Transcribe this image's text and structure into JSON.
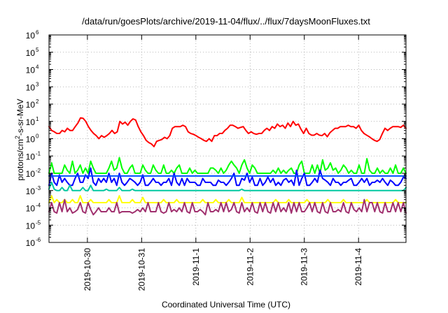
{
  "chart_data": {
    "type": "line",
    "title": "/data/run/goesPlots/archive/2019-11-04/flux/../flux/7daysMoonFluxes.txt",
    "xlabel": "Coordinated Universal Time (UTC)",
    "ylabel": "protons/cm2-s-sr-MeV",
    "yscale": "log",
    "ylim": [
      1e-06,
      1000000.0
    ],
    "xlim": [
      "2019-10-29T07:00",
      "2019-11-04T21:00"
    ],
    "grid": true,
    "x_ticks": [
      "2019-10-30",
      "2019-10-31",
      "2019-11-1",
      "2019-11-2",
      "2019-11-3",
      "2019-11-4"
    ],
    "y_ticks": [
      {
        "base": "10",
        "exp": "-6"
      },
      {
        "base": "10",
        "exp": "-5"
      },
      {
        "base": "10",
        "exp": "-4"
      },
      {
        "base": "10",
        "exp": "-3"
      },
      {
        "base": "10",
        "exp": "-2"
      },
      {
        "base": "10",
        "exp": "-1"
      },
      {
        "base": "10",
        "exp": "0"
      },
      {
        "base": "10",
        "exp": "1"
      },
      {
        "base": "10",
        "exp": "2"
      },
      {
        "base": "10",
        "exp": "3"
      },
      {
        "base": "10",
        "exp": "4"
      },
      {
        "base": "10",
        "exp": "5"
      },
      {
        "base": "10",
        "exp": "6"
      }
    ],
    "series": [
      {
        "color": "#ff0000",
        "values": [
          5,
          3,
          2.5,
          2,
          2,
          3,
          2.5,
          4,
          3,
          3,
          5,
          8,
          16,
          15,
          10,
          5,
          3,
          2,
          1.5,
          1,
          1.5,
          1.2,
          1.5,
          2,
          3,
          2,
          2.5,
          10,
          7,
          9,
          6,
          10,
          14,
          12,
          5,
          2.5,
          1.5,
          0.8,
          0.6,
          0.5,
          0.35,
          0.7,
          0.8,
          0.9,
          1.2,
          1,
          1.5,
          4,
          5,
          5,
          5,
          6,
          5,
          2.5,
          2,
          1.8,
          1.5,
          1.2,
          1,
          0.8,
          0.7,
          1,
          0.7,
          1.5,
          1.5,
          2,
          2,
          3,
          4,
          6,
          6,
          5,
          4,
          4.5,
          5,
          3,
          2,
          2.5,
          2,
          1.8,
          2,
          2,
          3,
          4,
          3,
          5,
          4,
          7,
          5,
          6,
          4,
          8,
          5,
          10,
          6,
          7,
          3.5,
          2,
          4,
          2,
          1.6,
          1.6,
          2,
          1.6,
          1.5,
          2,
          1.3,
          2.2,
          3,
          4,
          4,
          5,
          5,
          5,
          6,
          5,
          5,
          4,
          6,
          3,
          2,
          1.6,
          1.3,
          1,
          0.8,
          0.7,
          0.9,
          2,
          4,
          3,
          4,
          5,
          5,
          5,
          4.5,
          6,
          4
        ]
      },
      {
        "color": "#00ff00",
        "values": [
          0.01,
          0.04,
          0.01,
          0.01,
          0.01,
          0.01,
          0.03,
          0.015,
          0.01,
          0.05,
          0.01,
          0.015,
          0.03,
          0.01,
          0.02,
          0.01,
          0.05,
          0.02,
          0.01,
          0.01,
          0.01,
          0.01,
          0.01,
          0.02,
          0.05,
          0.015,
          0.02,
          0.08,
          0.02,
          0.01,
          0.01,
          0.02,
          0.03,
          0.01,
          0.01,
          0.01,
          0.03,
          0.015,
          0.01,
          0.01,
          0.03,
          0.015,
          0.01,
          0.01,
          0.03,
          0.01,
          0.01,
          0.015,
          0.01,
          0.02,
          0.03,
          0.01,
          0.01,
          0.01,
          0.02,
          0.01,
          0.015,
          0.01,
          0.01,
          0.01,
          0.01,
          0.01,
          0.02,
          0.02,
          0.015,
          0.01,
          0.02,
          0.01,
          0.015,
          0.03,
          0.05,
          0.03,
          0.02,
          0.01,
          0.03,
          0.06,
          0.02,
          0.01,
          0.03,
          0.02,
          0.01,
          0.01,
          0.01,
          0.01,
          0.01,
          0.01,
          0.015,
          0.01,
          0.02,
          0.01,
          0.015,
          0.01,
          0.015,
          0.02,
          0.01,
          0.01,
          0.03,
          0.05,
          0.01,
          0.01,
          0.01,
          0.03,
          0.01,
          0.03,
          0.01,
          0.06,
          0.015,
          0.02,
          0.04,
          0.015,
          0.02,
          0.01,
          0.015,
          0.03,
          0.02,
          0.01,
          0.015,
          0.01,
          0.01,
          0.03,
          0.01,
          0.01,
          0.07,
          0.015,
          0.01,
          0.01,
          0.02,
          0.01,
          0.015,
          0.01,
          0.01,
          0.02,
          0.01,
          0.03,
          0.01,
          0.01,
          0.02,
          0.01
        ]
      },
      {
        "color": "#0000ff",
        "values": [
          0.002,
          0.01,
          0.003,
          0.002,
          0.008,
          0.003,
          0.005,
          0.003,
          0.002,
          0.002,
          0.005,
          0.01,
          0.003,
          0.003,
          0.008,
          0.005,
          0.02,
          0.003,
          0.002,
          0.005,
          0.003,
          0.005,
          0.003,
          0.01,
          0.003,
          0.005,
          0.002,
          0.01,
          0.003,
          0.002,
          0.003,
          0.005,
          0.004,
          0.003,
          0.002,
          0.003,
          0.008,
          0.002,
          0.002,
          0.003,
          0.005,
          0.003,
          0.003,
          0.002,
          0.003,
          0.003,
          0.005,
          0.002,
          0.01,
          0.003,
          0.002,
          0.005,
          0.002,
          0.005,
          0.003,
          0.003,
          0.003,
          0.002,
          0.002,
          0.005,
          0.003,
          0.003,
          0.003,
          0.002,
          0.002,
          0.004,
          0.003,
          0.003,
          0.002,
          0.003,
          0.005,
          0.01,
          0.002,
          0.002,
          0.005,
          0.004,
          0.01,
          0.003,
          0.006,
          0.002,
          0.002,
          0.005,
          0.002,
          0.003,
          0.006,
          0.003,
          0.005,
          0.002,
          0.003,
          0.002,
          0.004,
          0.005,
          0.003,
          0.004,
          0.002,
          0.015,
          0.002,
          0.005,
          0.01,
          0.002,
          0.002,
          0.003,
          0.005,
          0.003,
          0.015,
          0.005,
          0.004,
          0.003,
          0.002,
          0.005,
          0.003,
          0.003,
          0.002,
          0.003,
          0.003,
          0.004,
          0.005,
          0.002,
          0.002,
          0.003,
          0.005,
          0.003,
          0.005,
          0.002,
          0.003,
          0.003,
          0.004,
          0.003,
          0.005,
          0.003,
          0.002,
          0.004,
          0.003,
          0.002,
          0.002,
          0.003,
          0.006,
          0.005
        ]
      },
      {
        "color": "#0050ff",
        "values": [
          0.007,
          0.007,
          0.007,
          0.007,
          0.007,
          0.007,
          0.007,
          0.007,
          0.007,
          0.007,
          0.007,
          0.007,
          0.007,
          0.007,
          0.007,
          0.007,
          0.007,
          0.007,
          0.007,
          0.007,
          0.007,
          0.007,
          0.007,
          0.007,
          0.007,
          0.007,
          0.007,
          0.007,
          0.007,
          0.007,
          0.007,
          0.007,
          0.007,
          0.007,
          0.007,
          0.007,
          0.007,
          0.007,
          0.007,
          0.007,
          0.007,
          0.007,
          0.007,
          0.007,
          0.007,
          0.007,
          0.007,
          0.007,
          0.007,
          0.007,
          0.007,
          0.007,
          0.007,
          0.007,
          0.007,
          0.007,
          0.007,
          0.007,
          0.007,
          0.007,
          0.007,
          0.007,
          0.007,
          0.007,
          0.007,
          0.007,
          0.007,
          0.007,
          0.007,
          0.007,
          0.007,
          0.007,
          0.007,
          0.007,
          0.007,
          0.007,
          0.007,
          0.007,
          0.007,
          0.007,
          0.007,
          0.007,
          0.007,
          0.007,
          0.007,
          0.007,
          0.007,
          0.007,
          0.007,
          0.007,
          0.007,
          0.007,
          0.007,
          0.007,
          0.007,
          0.007,
          0.007,
          0.007,
          0.007,
          0.007,
          0.007,
          0.007,
          0.007,
          0.007,
          0.007,
          0.007,
          0.007,
          0.007,
          0.007,
          0.007,
          0.007,
          0.007,
          0.007,
          0.007,
          0.007,
          0.007,
          0.007,
          0.007,
          0.007,
          0.007,
          0.007,
          0.007,
          0.007,
          0.007,
          0.007,
          0.007,
          0.007,
          0.007,
          0.007,
          0.007,
          0.007,
          0.007,
          0.007,
          0.007,
          0.007,
          0.007,
          0.007,
          0.007
        ]
      },
      {
        "color": "#00c8a0",
        "values": [
          0.0012,
          0.003,
          0.0012,
          0.001,
          0.001,
          0.0015,
          0.001,
          0.001,
          0.002,
          0.001,
          0.001,
          0.001,
          0.001,
          0.0015,
          0.001,
          0.001,
          0.002,
          0.001,
          0.001,
          0.001,
          0.001,
          0.001,
          0.0012,
          0.001,
          0.001,
          0.001,
          0.001,
          0.0015,
          0.001,
          0.001,
          0.001,
          0.001,
          0.0012,
          0.001,
          0.001,
          0.001,
          0.001,
          0.001,
          0.001,
          0.001,
          0.001,
          0.001,
          0.001,
          0.001,
          0.001,
          0.001,
          0.001,
          0.001,
          0.001,
          0.001,
          0.001,
          0.001,
          0.001,
          0.001,
          0.001,
          0.001,
          0.001,
          0.001,
          0.001,
          0.001,
          0.001,
          0.001,
          0.001,
          0.001,
          0.001,
          0.001,
          0.001,
          0.001,
          0.001,
          0.001,
          0.001,
          0.001,
          0.001,
          0.001,
          0.0012,
          0.001,
          0.001,
          0.001,
          0.001,
          0.001,
          0.001,
          0.001,
          0.001,
          0.001,
          0.001,
          0.001,
          0.001,
          0.001,
          0.001,
          0.001,
          0.001,
          0.001,
          0.001,
          0.001,
          0.001,
          0.001,
          0.001,
          0.001,
          0.001,
          0.001,
          0.001,
          0.001,
          0.001,
          0.001,
          0.001,
          0.001,
          0.001,
          0.001,
          0.001,
          0.001,
          0.001,
          0.001,
          0.001,
          0.001,
          0.001,
          0.001,
          0.001,
          0.001,
          0.001,
          0.001,
          0.001,
          0.001,
          0.001,
          0.001,
          0.001,
          0.001,
          0.001,
          0.001,
          0.001,
          0.001,
          0.001,
          0.001,
          0.001,
          0.001,
          0.001,
          0.001,
          0.001,
          0.0015
        ]
      },
      {
        "color": "#ffff00",
        "values": [
          0.0002,
          0.0005,
          0.0002,
          0.0003,
          0.0002,
          0.0002,
          0.0003,
          0.0002,
          0.0002,
          0.0003,
          0.0002,
          0.0002,
          0.0005,
          0.0002,
          0.0002,
          0.0002,
          0.0003,
          0.0002,
          0.0002,
          0.0002,
          0.0002,
          0.0002,
          0.0002,
          0.0003,
          0.0002,
          0.0002,
          0.0002,
          0.0005,
          0.0002,
          0.0002,
          0.0002,
          0.0002,
          0.0003,
          0.0002,
          0.0002,
          0.0002,
          0.0004,
          0.0002,
          0.0002,
          0.0002,
          0.0002,
          0.0002,
          0.0002,
          0.0002,
          0.0003,
          0.0002,
          0.0002,
          0.0002,
          0.0002,
          0.0003,
          0.0002,
          0.0002,
          0.0002,
          0.0002,
          0.0002,
          0.0002,
          0.0002,
          0.0002,
          0.0002,
          0.0003,
          0.0002,
          0.0002,
          0.0002,
          0.0002,
          0.0003,
          0.0002,
          0.0002,
          0.0002,
          0.0002,
          0.0003,
          0.0002,
          0.0002,
          0.0002,
          0.0002,
          0.0004,
          0.0002,
          0.0002,
          0.0002,
          0.0002,
          0.0002,
          0.0002,
          0.0002,
          0.0002,
          0.0002,
          0.0002,
          0.0002,
          0.0002,
          0.0003,
          0.0002,
          0.0002,
          0.0002,
          0.0002,
          0.0003,
          0.0002,
          0.0002,
          0.0002,
          0.0002,
          0.0002,
          0.0002,
          0.0003,
          0.0002,
          0.0002,
          0.0002,
          0.0002,
          0.0002,
          0.0002,
          0.0002,
          0.0003,
          0.0002,
          0.0002,
          0.0002,
          0.0002,
          0.0002,
          0.0003,
          0.0002,
          0.0002,
          0.0002,
          0.0002,
          0.0002,
          0.0002,
          0.0002,
          0.0002,
          0.0003,
          0.0002,
          0.0002,
          0.0002,
          0.0002,
          0.0002,
          0.0002,
          0.0002,
          0.0002,
          0.0002,
          0.0002,
          0.0003,
          0.0002,
          0.0002,
          0.0002,
          0.0002
        ]
      },
      {
        "color": "#a0306e",
        "values": [
          6e-05,
          0.0002,
          6e-05,
          5e-05,
          0.0002,
          6e-05,
          0.0003,
          6e-05,
          0.0001,
          5e-05,
          6e-05,
          8e-05,
          0.0002,
          6e-05,
          5e-05,
          0.0002,
          8e-05,
          4e-05,
          6e-05,
          0.0001,
          6e-05,
          6e-05,
          6e-05,
          0.0001,
          6e-05,
          6e-05,
          0.0002,
          5e-05,
          6e-05,
          6e-05,
          6e-05,
          6e-05,
          5e-05,
          6e-05,
          8e-05,
          6e-05,
          0.0001,
          6e-05,
          0.0002,
          6e-05,
          6e-05,
          6e-05,
          0.0002,
          6e-05,
          5e-05,
          6e-05,
          0.0002,
          6e-05,
          8e-05,
          6e-05,
          0.0001,
          6e-05,
          0.0002,
          6e-05,
          5e-05,
          0.0002,
          6e-05,
          6e-05,
          8e-05,
          6e-05,
          4e-05,
          0.0002,
          6e-05,
          6e-05,
          8e-05,
          6e-05,
          0.0002,
          6e-05,
          0.0002,
          6e-05,
          8e-05,
          0.0002,
          6e-05,
          5e-05,
          0.0002,
          6e-05,
          0.0001,
          6e-05,
          0.0002,
          6e-05,
          5e-05,
          0.0002,
          6e-05,
          0.0002,
          6e-05,
          5e-05,
          0.0002,
          6e-05,
          0.0002,
          6e-05,
          0.0001,
          6e-05,
          0.0002,
          5e-05,
          0.0002,
          6e-05,
          0.0002,
          6e-05,
          6e-05,
          0.0001,
          0.0002,
          6e-05,
          0.0002,
          6e-05,
          5e-05,
          0.0002,
          6e-05,
          5e-05,
          0.0002,
          6e-05,
          6e-05,
          8e-05,
          6e-05,
          0.0002,
          6e-05,
          5e-05,
          0.0002,
          8e-05,
          6e-05,
          0.0001,
          6e-05,
          0.0003,
          6e-05,
          0.0002,
          0.0002,
          6e-05,
          0.0002,
          6e-05,
          5e-05,
          0.0002,
          6e-05,
          6e-05,
          0.0002,
          6e-05,
          0.0002,
          6e-05,
          0.0002,
          5e-05
        ]
      }
    ]
  }
}
